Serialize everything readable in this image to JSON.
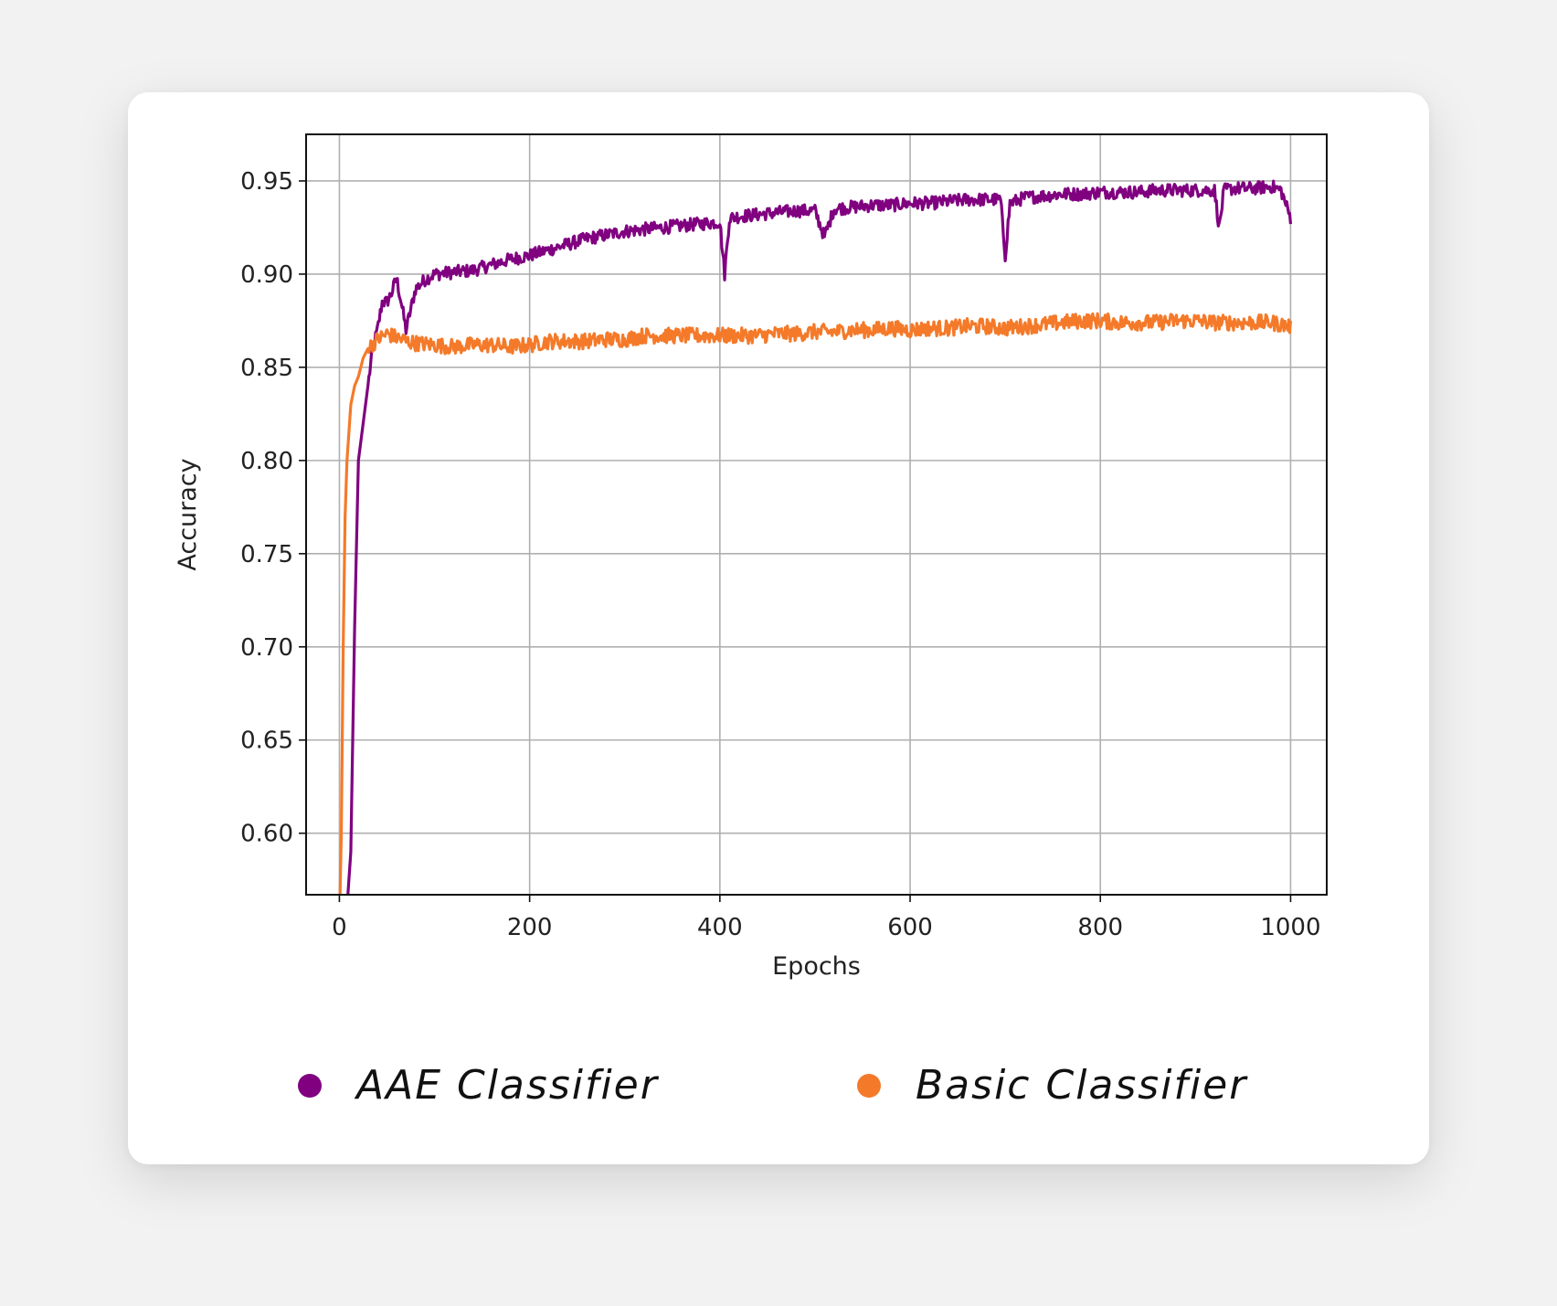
{
  "chart_data": {
    "type": "line",
    "title": "",
    "xlabel": "Epochs",
    "ylabel": "Accuracy",
    "xlim": [
      -35,
      1038
    ],
    "ylim": [
      0.567,
      0.975
    ],
    "xticks": [
      0,
      200,
      400,
      600,
      800,
      1000
    ],
    "yticks": [
      0.6,
      0.65,
      0.7,
      0.75,
      0.8,
      0.85,
      0.9,
      0.95
    ],
    "xtick_labels": [
      "0",
      "200",
      "400",
      "600",
      "800",
      "1000"
    ],
    "ytick_labels": [
      "0.60",
      "0.65",
      "0.70",
      "0.75",
      "0.80",
      "0.85",
      "0.90",
      "0.95"
    ],
    "grid": true,
    "legend_position": "bottom",
    "series": [
      {
        "name": "AAE Classifier",
        "color": "#800080",
        "x": [
          0,
          5,
          8,
          12,
          16,
          20,
          25,
          30,
          35,
          40,
          45,
          50,
          55,
          60,
          65,
          70,
          80,
          90,
          100,
          120,
          140,
          160,
          180,
          200,
          220,
          240,
          260,
          280,
          300,
          320,
          340,
          360,
          380,
          400,
          405,
          410,
          420,
          440,
          460,
          480,
          500,
          510,
          520,
          540,
          560,
          580,
          600,
          620,
          640,
          660,
          680,
          695,
          700,
          705,
          720,
          740,
          760,
          780,
          800,
          820,
          840,
          860,
          880,
          900,
          920,
          925,
          930,
          940,
          960,
          980,
          990,
          1000
        ],
        "y": [
          0.55,
          0.55,
          0.56,
          0.59,
          0.71,
          0.8,
          0.82,
          0.84,
          0.86,
          0.87,
          0.885,
          0.885,
          0.89,
          0.898,
          0.885,
          0.87,
          0.892,
          0.897,
          0.9,
          0.901,
          0.902,
          0.905,
          0.908,
          0.91,
          0.913,
          0.916,
          0.919,
          0.921,
          0.923,
          0.924,
          0.925,
          0.926,
          0.927,
          0.928,
          0.9,
          0.93,
          0.931,
          0.932,
          0.933,
          0.934,
          0.934,
          0.92,
          0.935,
          0.936,
          0.937,
          0.937,
          0.938,
          0.938,
          0.939,
          0.94,
          0.94,
          0.94,
          0.91,
          0.938,
          0.941,
          0.942,
          0.943,
          0.943,
          0.944,
          0.944,
          0.944,
          0.945,
          0.945,
          0.945,
          0.945,
          0.925,
          0.945,
          0.946,
          0.946,
          0.947,
          0.945,
          0.93
        ]
      },
      {
        "name": "Basic Classifier",
        "color": "#f47a2a",
        "x": [
          0,
          2,
          4,
          6,
          8,
          12,
          16,
          20,
          25,
          30,
          40,
          50,
          60,
          70,
          80,
          100,
          120,
          140,
          160,
          180,
          200,
          220,
          240,
          260,
          280,
          300,
          320,
          340,
          360,
          380,
          400,
          420,
          440,
          460,
          480,
          500,
          520,
          540,
          560,
          580,
          600,
          620,
          640,
          660,
          680,
          700,
          720,
          740,
          760,
          780,
          800,
          820,
          840,
          860,
          880,
          900,
          920,
          940,
          960,
          980,
          1000
        ],
        "y": [
          0.55,
          0.6,
          0.7,
          0.77,
          0.8,
          0.83,
          0.84,
          0.845,
          0.855,
          0.86,
          0.865,
          0.868,
          0.866,
          0.864,
          0.863,
          0.862,
          0.861,
          0.862,
          0.862,
          0.861,
          0.862,
          0.864,
          0.864,
          0.864,
          0.865,
          0.865,
          0.867,
          0.867,
          0.867,
          0.867,
          0.867,
          0.867,
          0.867,
          0.868,
          0.868,
          0.869,
          0.869,
          0.87,
          0.87,
          0.871,
          0.87,
          0.871,
          0.871,
          0.872,
          0.872,
          0.871,
          0.872,
          0.873,
          0.874,
          0.875,
          0.875,
          0.874,
          0.874,
          0.874,
          0.875,
          0.875,
          0.874,
          0.874,
          0.874,
          0.874,
          0.872
        ]
      }
    ]
  },
  "legend": {
    "items": [
      {
        "label": "AAE Classifier",
        "color": "#800080"
      },
      {
        "label": "Basic Classifier",
        "color": "#f47a2a"
      }
    ]
  }
}
